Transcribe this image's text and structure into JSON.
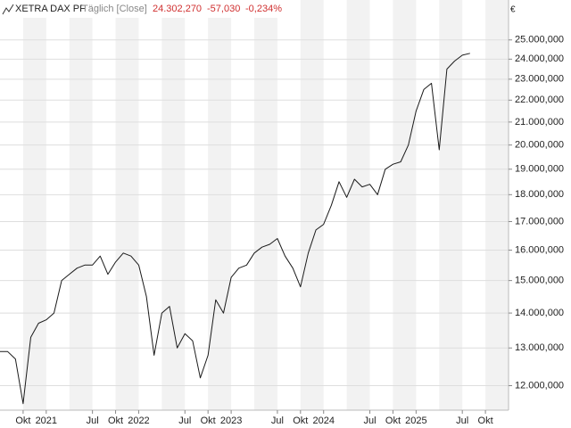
{
  "chart_data": {
    "type": "line",
    "title": "XETRA DAX PF",
    "subtitle": "Täglich [Close]",
    "last_value": "24.302,270",
    "change": "-57,030",
    "change_percent": "-0,234%",
    "unit": "€",
    "log_scale": true,
    "grid": true,
    "x": [
      "2020-07",
      "2020-08",
      "2020-09",
      "2020-10",
      "2020-11",
      "2020-12",
      "2021-01",
      "2021-02",
      "2021-03",
      "2021-04",
      "2021-05",
      "2021-06",
      "2021-07",
      "2021-08",
      "2021-09",
      "2021-10",
      "2021-11",
      "2021-12",
      "2022-01",
      "2022-02",
      "2022-03",
      "2022-04",
      "2022-05",
      "2022-06",
      "2022-07",
      "2022-08",
      "2022-09",
      "2022-10",
      "2022-11",
      "2022-12",
      "2023-01",
      "2023-02",
      "2023-03",
      "2023-04",
      "2023-05",
      "2023-06",
      "2023-07",
      "2023-08",
      "2023-09",
      "2023-10",
      "2023-11",
      "2023-12",
      "2024-01",
      "2024-02",
      "2024-03",
      "2024-04",
      "2024-05",
      "2024-06",
      "2024-07",
      "2024-08",
      "2024-09",
      "2024-10",
      "2024-11",
      "2024-12",
      "2025-01",
      "2025-02",
      "2025-03",
      "2025-04",
      "2025-05",
      "2025-06",
      "2025-07",
      "2025-08"
    ],
    "series": [
      {
        "name": "XETRA DAX PF",
        "color": "#1a1a1a",
        "values": [
          12900,
          12900,
          12700,
          11550,
          13300,
          13700,
          13800,
          14000,
          15000,
          15200,
          15400,
          15500,
          15500,
          15800,
          15200,
          15600,
          15900,
          15800,
          15500,
          14500,
          12800,
          14000,
          14200,
          13000,
          13400,
          13200,
          12200,
          12800,
          14400,
          14000,
          15100,
          15400,
          15500,
          15900,
          16100,
          16200,
          16400,
          15800,
          15400,
          14800,
          15900,
          16700,
          16900,
          17600,
          18500,
          17900,
          18600,
          18300,
          18400,
          18000,
          19000,
          19200,
          19300,
          20000,
          21500,
          22500,
          22800,
          19800,
          23500,
          23900,
          24200,
          24300
        ]
      }
    ],
    "xlim": [
      "2020-07",
      "2026-01"
    ],
    "xticks": [
      {
        "value": "2020-10",
        "label": "Okt"
      },
      {
        "value": "2021-01",
        "label": "2021"
      },
      {
        "value": "2021-07",
        "label": "Jul"
      },
      {
        "value": "2021-10",
        "label": "Okt"
      },
      {
        "value": "2022-01",
        "label": "2022"
      },
      {
        "value": "2022-07",
        "label": "Jul"
      },
      {
        "value": "2022-10",
        "label": "Okt"
      },
      {
        "value": "2023-01",
        "label": "2023"
      },
      {
        "value": "2023-07",
        "label": "Jul"
      },
      {
        "value": "2023-10",
        "label": "Okt"
      },
      {
        "value": "2024-01",
        "label": "2024"
      },
      {
        "value": "2024-07",
        "label": "Jul"
      },
      {
        "value": "2024-10",
        "label": "Okt"
      },
      {
        "value": "2025-01",
        "label": "2025"
      },
      {
        "value": "2025-07",
        "label": "Jul"
      },
      {
        "value": "2025-10",
        "label": "Okt"
      }
    ],
    "ylim": [
      11500,
      26200
    ],
    "yticks": [
      {
        "value": 12000,
        "label": "12.000,000"
      },
      {
        "value": 13000,
        "label": "13.000,000"
      },
      {
        "value": 14000,
        "label": "14.000,000"
      },
      {
        "value": 15000,
        "label": "15.000,000"
      },
      {
        "value": 16000,
        "label": "16.000,000"
      },
      {
        "value": 17000,
        "label": "17.000,000"
      },
      {
        "value": 18000,
        "label": "18.000,000"
      },
      {
        "value": 19000,
        "label": "19.000,000"
      },
      {
        "value": 20000,
        "label": "20.000,000"
      },
      {
        "value": 21000,
        "label": "21.000,000"
      },
      {
        "value": 22000,
        "label": "22.000,000"
      },
      {
        "value": 23000,
        "label": "23.000,000"
      },
      {
        "value": 24000,
        "label": "24.000,000"
      },
      {
        "value": 25000,
        "label": "25.000,000"
      }
    ]
  }
}
